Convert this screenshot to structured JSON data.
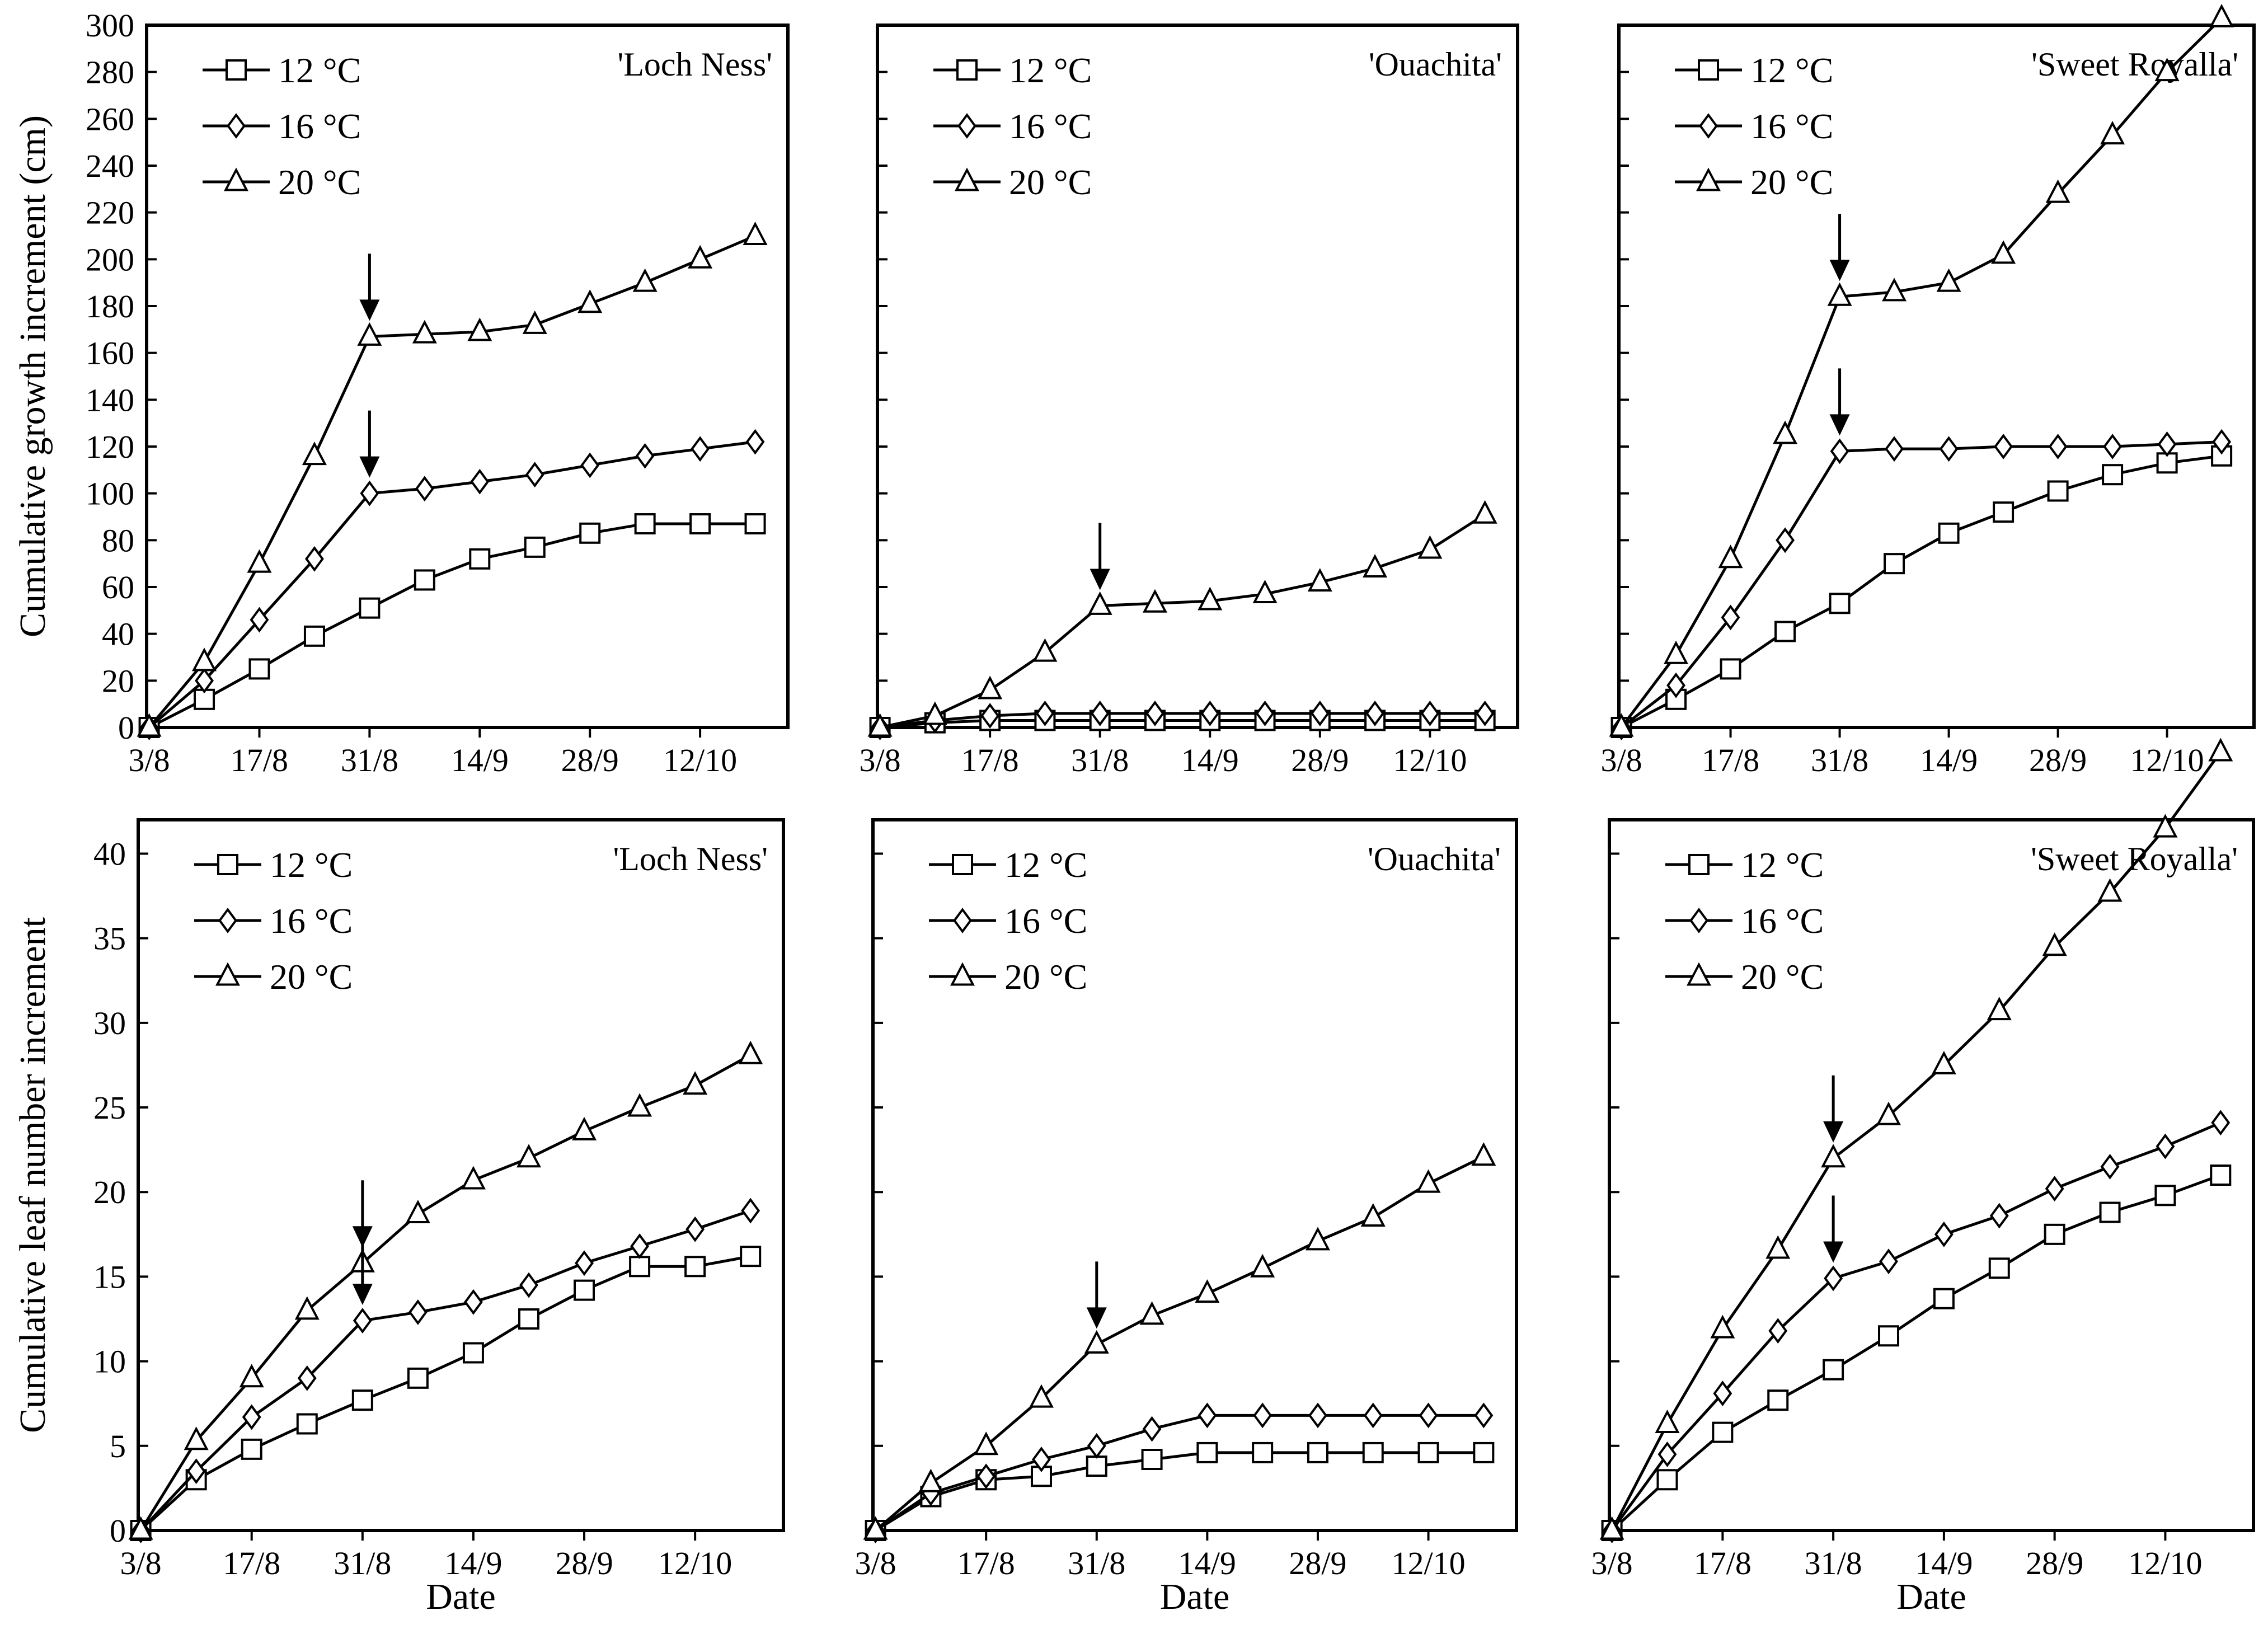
{
  "x_tick_labels": [
    "3/8",
    "17/8",
    "31/8",
    "14/9",
    "28/9",
    "12/10"
  ],
  "x_axis_title": "Date",
  "legend": [
    {
      "label": "12 °C",
      "marker": "square"
    },
    {
      "label": "16 °C",
      "marker": "diamond"
    },
    {
      "label": "20 °C",
      "marker": "triangle"
    }
  ],
  "chart_data": [
    {
      "type": "line",
      "row": "top",
      "panel": "Loch Ness",
      "title": "'Loch Ness'",
      "ylabel": "Cumulative growth increment (cm)",
      "ylim": [
        0,
        300
      ],
      "yticks": [
        0,
        20,
        40,
        60,
        80,
        100,
        120,
        140,
        160,
        180,
        200,
        220,
        240,
        260,
        280,
        300
      ],
      "show_ytick_labels": true,
      "x": [
        "3/8",
        "10/8",
        "17/8",
        "24/8",
        "31/8",
        "7/9",
        "14/9",
        "21/9",
        "28/9",
        "5/10",
        "12/10",
        "19/10"
      ],
      "series": [
        {
          "name": "12 °C",
          "values": [
            0,
            12,
            25,
            39,
            51,
            63,
            72,
            77,
            83,
            87,
            87,
            87
          ]
        },
        {
          "name": "16 °C",
          "values": [
            0,
            20,
            46,
            72,
            100,
            102,
            105,
            108,
            112,
            116,
            119,
            122
          ]
        },
        {
          "name": "20 °C",
          "values": [
            0,
            28,
            70,
            116,
            167,
            168,
            169,
            172,
            181,
            190,
            200,
            210
          ]
        }
      ],
      "arrows": [
        {
          "x": "31/8",
          "series": "20 °C"
        },
        {
          "x": "31/8",
          "series": "16 °C"
        }
      ]
    },
    {
      "type": "line",
      "row": "top",
      "panel": "Ouachita",
      "title": "'Ouachita'",
      "ylabel": "",
      "ylim": [
        0,
        300
      ],
      "yticks": [
        0,
        20,
        40,
        60,
        80,
        100,
        120,
        140,
        160,
        180,
        200,
        220,
        240,
        260,
        280,
        300
      ],
      "show_ytick_labels": false,
      "x": [
        "3/8",
        "10/8",
        "17/8",
        "24/8",
        "31/8",
        "7/9",
        "14/9",
        "21/9",
        "28/9",
        "5/10",
        "12/10",
        "19/10"
      ],
      "series": [
        {
          "name": "12 °C",
          "values": [
            0,
            2,
            3,
            3,
            3,
            3,
            3,
            3,
            3,
            3,
            3,
            3
          ]
        },
        {
          "name": "16 °C",
          "values": [
            0,
            3,
            5,
            6,
            6,
            6,
            6,
            6,
            6,
            6,
            6,
            6
          ]
        },
        {
          "name": "20 °C",
          "values": [
            0,
            5,
            16,
            32,
            52,
            53,
            54,
            57,
            62,
            68,
            76,
            91
          ]
        }
      ],
      "arrows": [
        {
          "x": "31/8",
          "series": "20 °C"
        }
      ]
    },
    {
      "type": "line",
      "row": "top",
      "panel": "Sweet Royalla",
      "title": "'Sweet Royalla'",
      "ylabel": "",
      "ylim": [
        0,
        300
      ],
      "yticks": [
        0,
        20,
        40,
        60,
        80,
        100,
        120,
        140,
        160,
        180,
        200,
        220,
        240,
        260,
        280,
        300
      ],
      "show_ytick_labels": false,
      "x": [
        "3/8",
        "10/8",
        "17/8",
        "24/8",
        "31/8",
        "7/9",
        "14/9",
        "21/9",
        "28/9",
        "5/10",
        "12/10",
        "19/10"
      ],
      "series": [
        {
          "name": "12 °C",
          "values": [
            0,
            12,
            25,
            41,
            53,
            70,
            83,
            92,
            101,
            108,
            113,
            116
          ]
        },
        {
          "name": "16 °C",
          "values": [
            0,
            18,
            47,
            80,
            118,
            119,
            119,
            120,
            120,
            120,
            121,
            122
          ]
        },
        {
          "name": "20 °C",
          "values": [
            0,
            31,
            72,
            125,
            184,
            186,
            190,
            202,
            228,
            253,
            280,
            303
          ]
        }
      ],
      "arrows": [
        {
          "x": "31/8",
          "series": "20 °C"
        },
        {
          "x": "31/8",
          "series": "16 °C"
        }
      ]
    },
    {
      "type": "line",
      "row": "bottom",
      "panel": "Loch Ness",
      "title": "'Loch Ness'",
      "ylabel": "Cumulative leaf number increment",
      "ylim": [
        0,
        42
      ],
      "yticks": [
        0,
        5,
        10,
        15,
        20,
        25,
        30,
        35,
        40
      ],
      "show_ytick_labels": true,
      "x": [
        "3/8",
        "10/8",
        "17/8",
        "24/8",
        "31/8",
        "7/9",
        "14/9",
        "21/9",
        "28/9",
        "5/10",
        "12/10",
        "19/10"
      ],
      "series": [
        {
          "name": "12 °C",
          "values": [
            0,
            3.0,
            4.8,
            6.3,
            7.7,
            9.0,
            10.5,
            12.5,
            14.2,
            15.6,
            15.6,
            16.2
          ]
        },
        {
          "name": "16 °C",
          "values": [
            0,
            3.5,
            6.7,
            9.0,
            12.4,
            12.9,
            13.5,
            14.5,
            15.8,
            16.8,
            17.8,
            18.9
          ]
        },
        {
          "name": "20 °C",
          "values": [
            0,
            5.3,
            9.0,
            13.0,
            15.8,
            18.7,
            20.7,
            22.0,
            23.6,
            25.0,
            26.3,
            28.1
          ]
        }
      ],
      "arrows": [
        {
          "x": "31/8",
          "series": "20 °C"
        },
        {
          "x": "31/8",
          "series": "16 °C"
        }
      ]
    },
    {
      "type": "line",
      "row": "bottom",
      "panel": "Ouachita",
      "title": "'Ouachita'",
      "ylabel": "",
      "ylim": [
        0,
        42
      ],
      "yticks": [
        0,
        5,
        10,
        15,
        20,
        25,
        30,
        35,
        40
      ],
      "show_ytick_labels": false,
      "x": [
        "3/8",
        "10/8",
        "17/8",
        "24/8",
        "31/8",
        "7/9",
        "14/9",
        "21/9",
        "28/9",
        "5/10",
        "12/10",
        "19/10"
      ],
      "series": [
        {
          "name": "12 °C",
          "values": [
            0,
            2.0,
            3.0,
            3.2,
            3.8,
            4.2,
            4.6,
            4.6,
            4.6,
            4.6,
            4.6,
            4.6
          ]
        },
        {
          "name": "16 °C",
          "values": [
            0,
            2.2,
            3.2,
            4.2,
            5.0,
            6.0,
            6.8,
            6.8,
            6.8,
            6.8,
            6.8,
            6.8
          ]
        },
        {
          "name": "20 °C",
          "values": [
            0,
            2.8,
            5.0,
            7.8,
            11.0,
            12.7,
            14.0,
            15.5,
            17.1,
            18.5,
            20.5,
            22.1
          ]
        }
      ],
      "arrows": [
        {
          "x": "31/8",
          "series": "20 °C"
        }
      ]
    },
    {
      "type": "line",
      "row": "bottom",
      "panel": "Sweet Royalla",
      "title": "'Sweet Royalla'",
      "ylabel": "",
      "ylim": [
        0,
        42
      ],
      "yticks": [
        0,
        5,
        10,
        15,
        20,
        25,
        30,
        35,
        40
      ],
      "show_ytick_labels": false,
      "x": [
        "3/8",
        "10/8",
        "17/8",
        "24/8",
        "31/8",
        "7/9",
        "14/9",
        "21/9",
        "28/9",
        "5/10",
        "12/10",
        "19/10"
      ],
      "series": [
        {
          "name": "12 °C",
          "values": [
            0,
            3.0,
            5.8,
            7.7,
            9.5,
            11.5,
            13.7,
            15.5,
            17.5,
            18.8,
            19.8,
            21.0
          ]
        },
        {
          "name": "16 °C",
          "values": [
            0,
            4.5,
            8.1,
            11.8,
            14.9,
            15.9,
            17.5,
            18.6,
            20.2,
            21.5,
            22.7,
            24.1
          ]
        },
        {
          "name": "20 °C",
          "values": [
            0,
            6.3,
            11.9,
            16.6,
            22.0,
            24.5,
            27.5,
            30.7,
            34.5,
            37.7,
            41.5,
            46.0
          ]
        }
      ],
      "arrows": [
        {
          "x": "31/8",
          "series": "20 °C"
        },
        {
          "x": "31/8",
          "series": "16 °C"
        }
      ]
    }
  ]
}
